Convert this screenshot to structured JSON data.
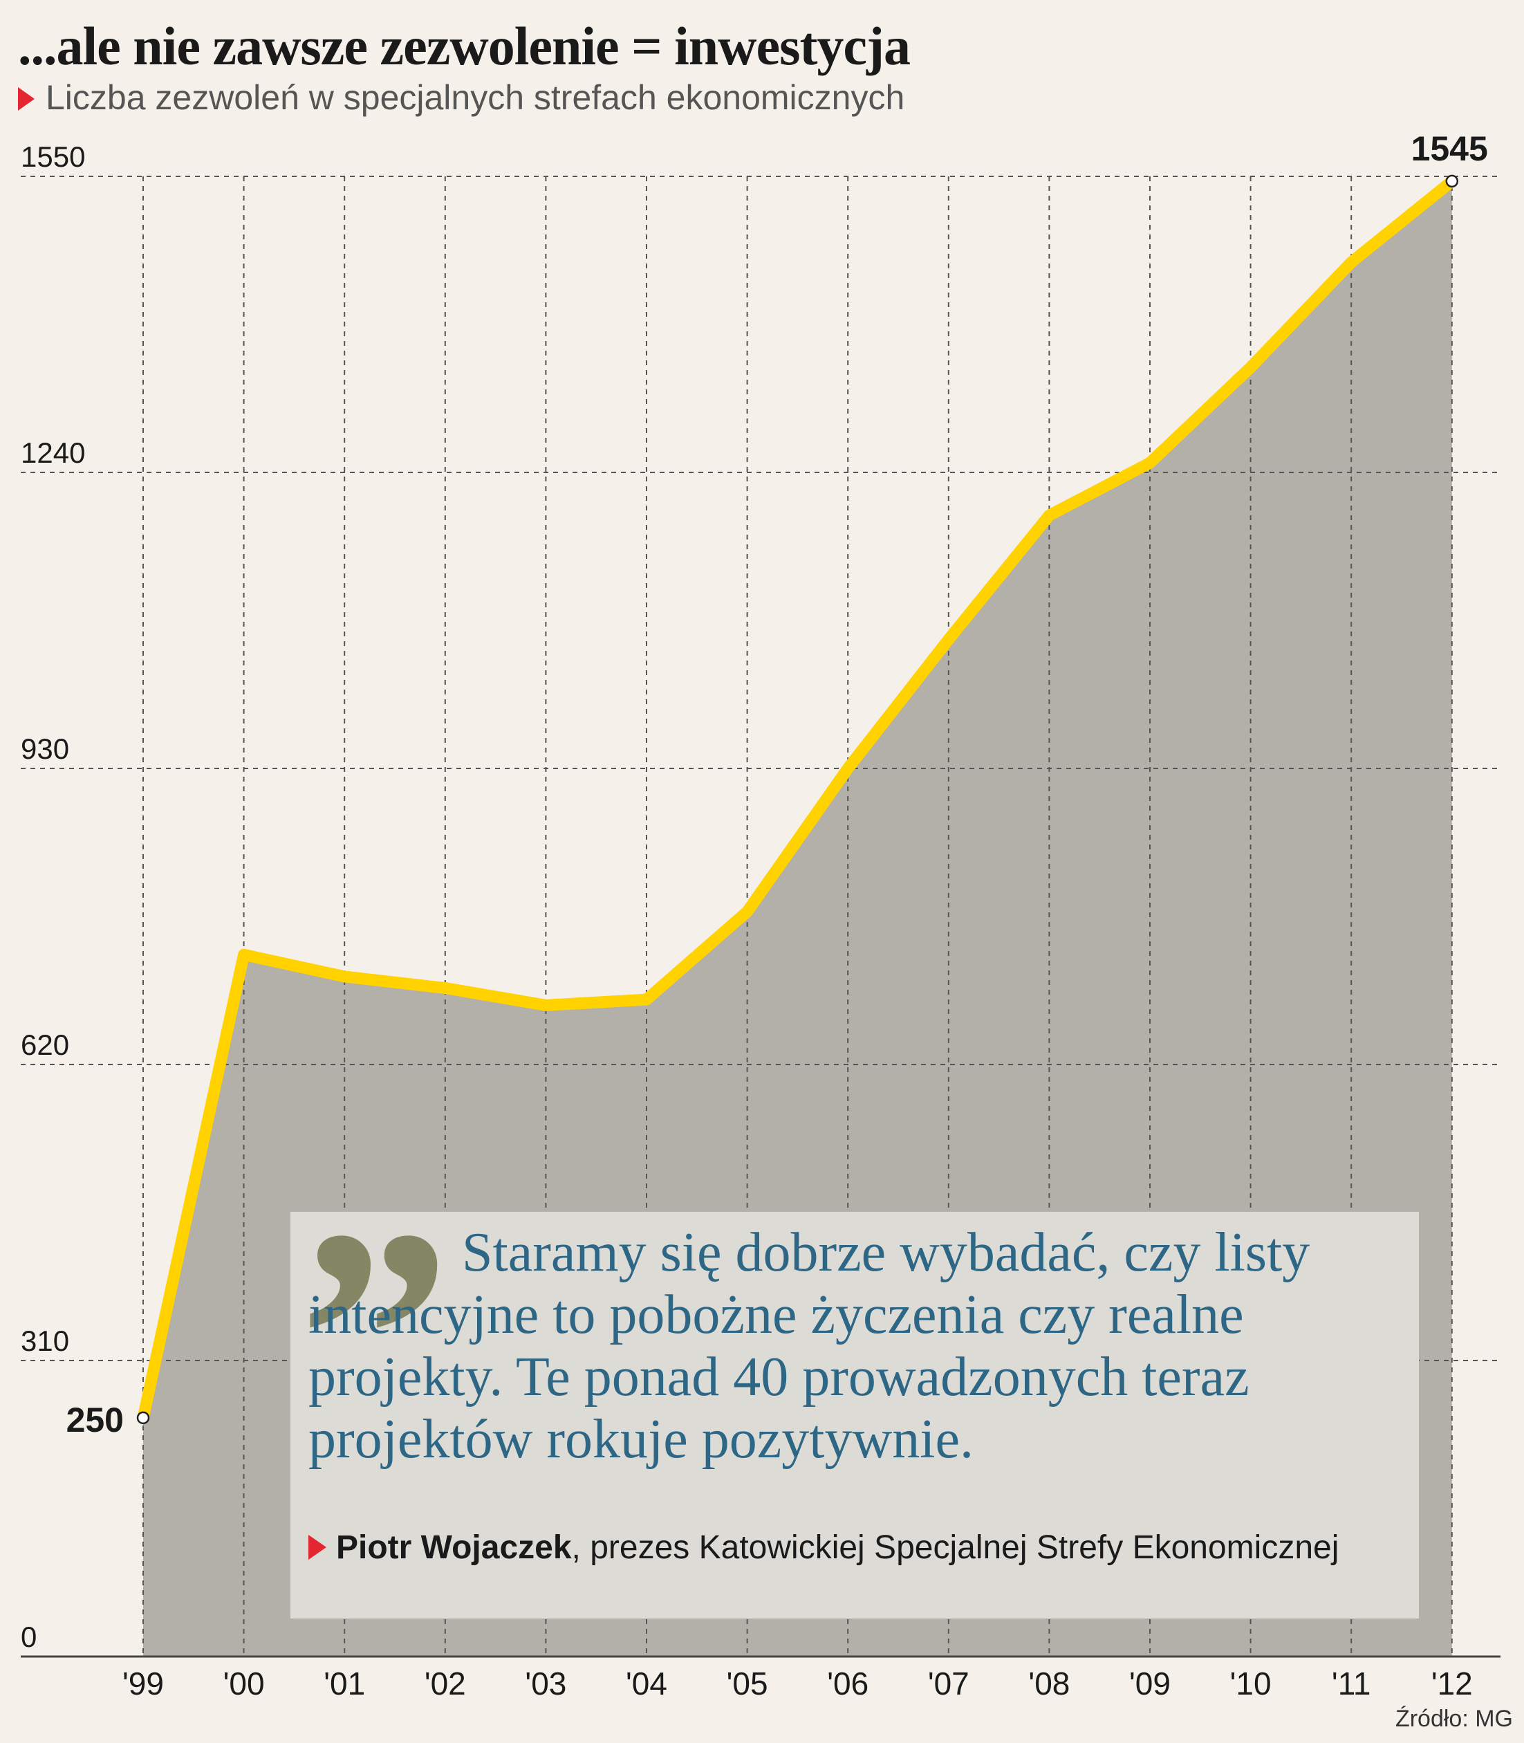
{
  "header": {
    "title": "...ale nie zawsze zezwolenie = inwestycja",
    "subtitle": "Liczba zezwoleń w specjalnych strefach ekonomicznych"
  },
  "chart_data": {
    "type": "area",
    "title": "...ale nie zawsze zezwolenie = inwestycja",
    "subtitle": "Liczba zezwoleń w specjalnych strefach ekonomicznych",
    "categories": [
      "'99",
      "'00",
      "'01",
      "'02",
      "'03",
      "'04",
      "'05",
      "'06",
      "'07",
      "'08",
      "'09",
      "'10",
      "'11",
      "'12"
    ],
    "series": [
      {
        "values": [
          250,
          735,
          712,
          700,
          682,
          688,
          780,
          930,
          1065,
          1195,
          1250,
          1350,
          1460,
          1545
        ]
      }
    ],
    "yticks": [
      0,
      310,
      620,
      930,
      1240,
      1550
    ],
    "ylim": [
      0,
      1550
    ],
    "grid": true,
    "highlight_labels": [
      {
        "category": "'99",
        "text": "250"
      },
      {
        "category": "'12",
        "text": "1545"
      }
    ],
    "colors": {
      "line": "#ffd200",
      "area": "#b3b0a9",
      "grid": "#555555",
      "background": "#f5f1ea"
    }
  },
  "quote": {
    "mark": "”",
    "text": "Staramy się dobrze wybadać, czy listy intencyjne to pobożne życzenia czy realne projekty. Te ponad 40 prowadzonych teraz projektów rokuje pozytywnie.",
    "author_name": "Piotr Wojaczek",
    "author_role": ", prezes Katowickiej Specjalnej Strefy Ekonomicznej"
  },
  "source": "Źródło: MG"
}
